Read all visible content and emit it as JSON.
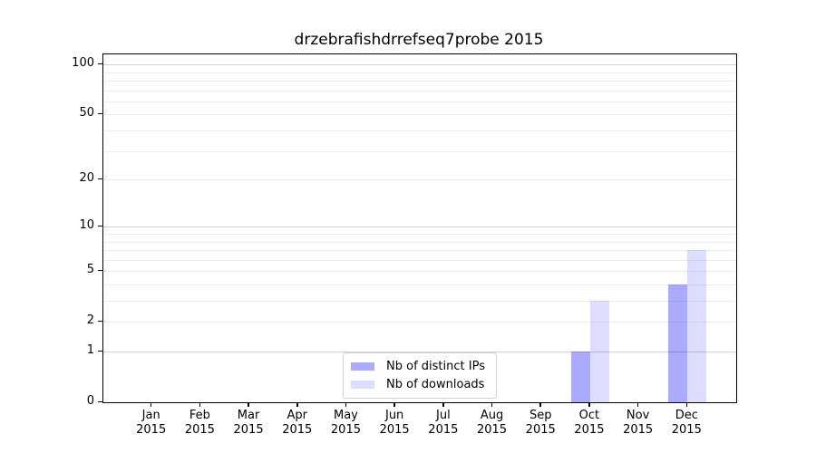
{
  "title": "drzebrafishdrrefseq7probe 2015",
  "chart_data": {
    "type": "bar",
    "title": "drzebrafishdrrefseq7probe 2015",
    "categories": [
      "Jan 2015",
      "Feb 2015",
      "Mar 2015",
      "Apr 2015",
      "May 2015",
      "Jun 2015",
      "Jul 2015",
      "Aug 2015",
      "Sep 2015",
      "Oct 2015",
      "Nov 2015",
      "Dec 2015"
    ],
    "series": [
      {
        "name": "Nb of distinct IPs",
        "color": "#aaaaff",
        "values": [
          0,
          0,
          0,
          0,
          0,
          0,
          0,
          0,
          0,
          1,
          0,
          4
        ]
      },
      {
        "name": "Nb of downloads",
        "color": "#ddddff",
        "values": [
          0,
          0,
          0,
          0,
          0,
          0,
          0,
          0,
          0,
          3,
          0,
          7
        ]
      }
    ],
    "xlabel": "",
    "ylabel": "",
    "yscale": "log10(1+y)",
    "ylim": [
      0,
      115
    ],
    "yticks": [
      0,
      1,
      2,
      5,
      10,
      20,
      50,
      100
    ],
    "gridlines": {
      "minor": [
        2,
        3,
        4,
        5,
        6,
        7,
        8,
        9,
        20,
        30,
        40,
        50,
        60,
        70,
        80,
        90
      ],
      "major": [
        1,
        10,
        100
      ]
    },
    "grid": true,
    "legend": {
      "position": "bottom-center",
      "entries": [
        "Nb of distinct IPs",
        "Nb of downloads"
      ]
    }
  }
}
